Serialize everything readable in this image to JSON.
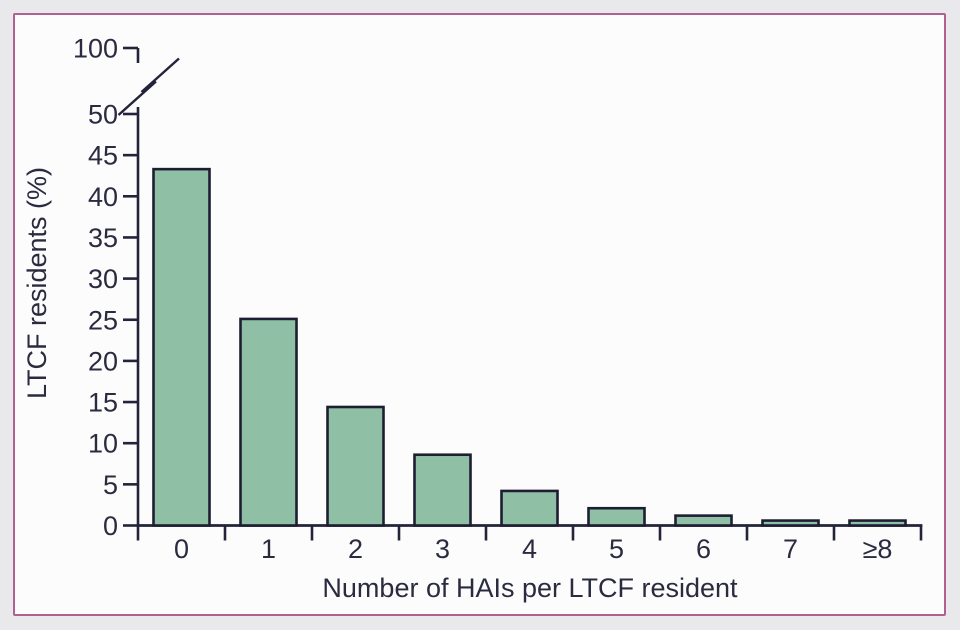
{
  "figure": {
    "page_background": "#e9e9ec",
    "panel_background": "#fcfcfd",
    "panel_border_color": "#b2608f"
  },
  "chart_data": {
    "type": "bar",
    "categories": [
      "0",
      "1",
      "2",
      "3",
      "4",
      "5",
      "6",
      "7",
      "≥8"
    ],
    "values": [
      43.3,
      25.1,
      14.4,
      8.6,
      4.2,
      2.1,
      1.2,
      0.6,
      0.6
    ],
    "title": "",
    "xlabel": "Number of HAIs per LTCF resident",
    "ylabel": "LTCF residents (%)",
    "yticks": [
      0,
      5,
      10,
      15,
      20,
      25,
      30,
      35,
      40,
      45,
      50
    ],
    "ytick_above_break": 100,
    "axis_break": {
      "between": [
        50,
        100
      ],
      "style": "double-slash"
    },
    "ylim": [
      0,
      50
    ],
    "grid": false,
    "legend": "none",
    "bar_fill": "#8fc0a6",
    "bar_stroke": "#1e1e32",
    "axis_color": "#23233a",
    "text_color": "#2b2b40"
  }
}
